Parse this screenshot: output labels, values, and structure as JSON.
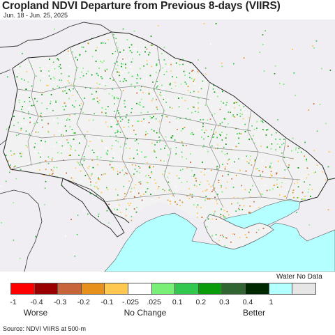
{
  "title": "Cropland NDVI Departure from Previous 8-days (VIIRS)",
  "date_range": "Jun. 18 - Jun. 25, 2025",
  "legend": {
    "water_nodata_label": "Water No Data",
    "colors": [
      "#ff0000",
      "#990000",
      "#c8643c",
      "#e8901c",
      "#ffc850",
      "#ffffff",
      "#78f078",
      "#32c850",
      "#0a9b0a",
      "#306430",
      "#002800",
      "#b4ffff",
      "#e6e6e6"
    ],
    "ticks": [
      "-1",
      "-0.4",
      "-0.3",
      "-0.2",
      "-0.1",
      "-.025",
      ".025",
      "0.1",
      "0.2",
      "0.3",
      "0.4",
      "1"
    ],
    "categories": [
      "Worse",
      "No Change",
      "Better"
    ]
  },
  "map_colors": {
    "land_background": "#f0eef2",
    "sea": "#b4ffff",
    "boundary": "#888888",
    "country_border": "#222222"
  },
  "source": "Source: NDVI VIIRS at 500-m"
}
